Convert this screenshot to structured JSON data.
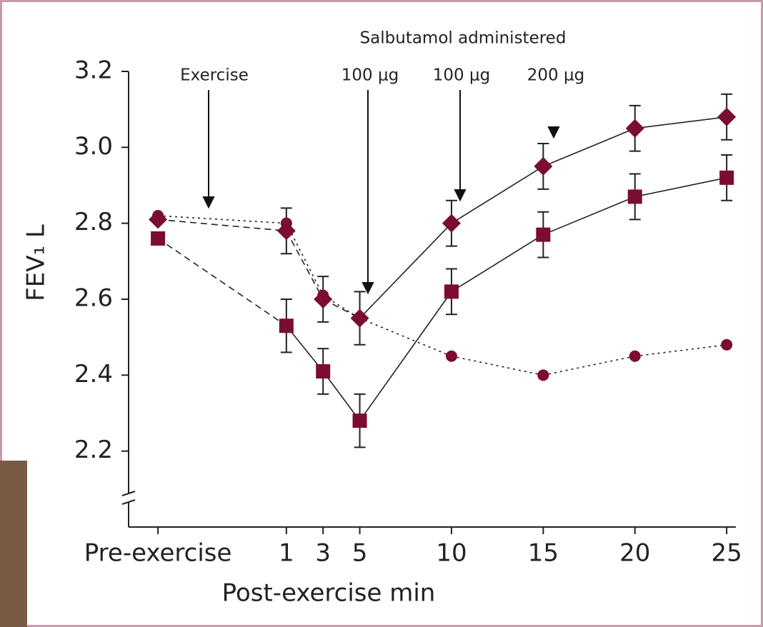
{
  "chart_data": {
    "type": "line",
    "annotations": [
      "Salbutamol administered",
      "Exercise",
      "100 μg",
      "100 μg",
      "200 μg"
    ],
    "xlabel": "Post-exercise min",
    "ylabel": "FEV₁ L",
    "x": [
      -6,
      1,
      3,
      5,
      10,
      15,
      20,
      25
    ],
    "xlim": [
      -7.6,
      25.5
    ],
    "xticks": [
      {
        "value": -6,
        "label": "Pre-exercise"
      },
      1,
      3,
      5,
      10,
      15,
      20,
      25
    ],
    "ylim": [
      2.0,
      3.2
    ],
    "yticks": [
      {
        "value": 3.2,
        "label": "3.2"
      },
      {
        "value": 3,
        "label": "3.0"
      },
      2.8,
      2.6,
      2.4,
      2.2
    ],
    "axis_break": true,
    "series": [
      {
        "color": "#7a0d30",
        "marker": "diamond",
        "values": [
          2.81,
          2.78,
          2.6,
          2.55,
          2.8,
          2.95,
          3.05,
          3.08
        ],
        "errors": [
          null,
          0.06,
          0.06,
          0.07,
          0.06,
          0.06,
          0.06,
          0.06
        ],
        "segment_styles": [
          null,
          "dashed",
          "dashed",
          "dashed",
          "solid",
          "solid",
          "solid",
          "solid"
        ]
      },
      {
        "color": "#7a0d30",
        "marker": "square",
        "values": [
          2.76,
          2.53,
          2.41,
          2.28,
          2.62,
          2.77,
          2.87,
          2.92
        ],
        "errors": [
          null,
          0.07,
          0.06,
          0.07,
          0.06,
          0.06,
          0.06,
          0.06
        ],
        "segment_styles": [
          null,
          "dashed",
          "solid",
          "solid",
          "solid",
          "solid",
          "solid",
          "solid"
        ]
      },
      {
        "color": "#7a0d30",
        "marker": "circle",
        "values": [
          2.82,
          2.8,
          2.61,
          2.55,
          2.45,
          2.4,
          2.45,
          2.48
        ],
        "errors": [
          null,
          null,
          null,
          null,
          null,
          null,
          null,
          null
        ],
        "segment_styles": [
          null,
          "dotted",
          "dotted",
          "dotted",
          "dotted",
          "dotted",
          "dotted",
          "dotted"
        ]
      }
    ]
  }
}
